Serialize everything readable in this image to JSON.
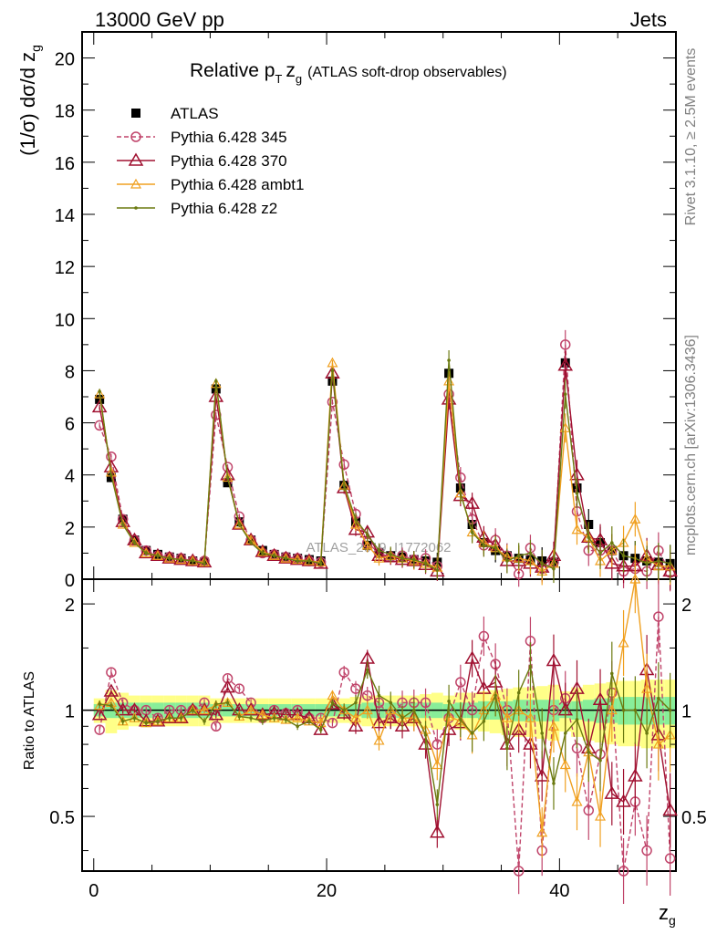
{
  "header": {
    "left": "13000 GeV pp",
    "right": "Jets"
  },
  "side_text": {
    "rivet": "Rivet 3.1.10, ≥ 2.5M events",
    "mcplots": "mcplots.cern.ch [arXiv:1306.3436]"
  },
  "watermark": "ATLAS_2019_I1772062",
  "colors": {
    "atlas": "#000000",
    "p345": "#c0446a",
    "p370": "#a01030",
    "ambt1": "#f0a020",
    "z2": "#6b7a10",
    "band_inner": "#88ee99",
    "band_outer": "#ffff88"
  },
  "chart_data": [
    {
      "type": "line",
      "title": "Relative p_T z_g (ATLAS soft-drop observables)",
      "title_main": "Relative p",
      "title_sub_T": "T",
      "title_z": "z",
      "title_sub_g": "g",
      "title_paren": "(ATLAS soft-drop observables)",
      "ylabel": "(1/σ) dσ/d z_g",
      "xlim": [
        -1,
        50
      ],
      "ylim": [
        0,
        21
      ],
      "yticks": [
        "0",
        "2",
        "4",
        "6",
        "8",
        "10",
        "12",
        "14",
        "16",
        "18",
        "20"
      ],
      "x": [
        0.5,
        1.5,
        2.5,
        3.5,
        4.5,
        5.5,
        6.5,
        7.5,
        8.5,
        9.5,
        10.5,
        11.5,
        12.5,
        13.5,
        14.5,
        15.5,
        16.5,
        17.5,
        18.5,
        19.5,
        20.5,
        21.5,
        22.5,
        23.5,
        24.5,
        25.5,
        26.5,
        27.5,
        28.5,
        29.5,
        30.5,
        31.5,
        32.5,
        33.5,
        34.5,
        35.5,
        36.5,
        37.5,
        38.5,
        39.5,
        40.5,
        41.5,
        42.5,
        43.5,
        44.5,
        45.5,
        46.5,
        47.5,
        48.5,
        49.5
      ],
      "series": [
        {
          "name": "ATLAS",
          "key": "atlas",
          "marker": "square",
          "values": [
            6.9,
            3.9,
            2.3,
            1.5,
            1.1,
            0.95,
            0.85,
            0.8,
            0.7,
            0.65,
            7.3,
            3.7,
            2.2,
            1.5,
            1.1,
            0.95,
            0.85,
            0.8,
            0.75,
            0.7,
            7.6,
            3.6,
            2.2,
            1.3,
            1.0,
            0.9,
            0.85,
            0.75,
            0.7,
            0.65,
            7.9,
            3.5,
            2.1,
            1.4,
            1.1,
            0.9,
            0.8,
            0.75,
            0.7,
            0.65,
            8.3,
            3.5,
            2.1,
            1.4,
            1.1,
            0.9,
            0.8,
            0.7,
            0.65,
            0.6
          ]
        },
        {
          "name": "Pythia 6.428 345",
          "key": "p345",
          "marker": "circle",
          "dashed": true,
          "values": [
            5.9,
            4.7,
            2.3,
            1.5,
            1.1,
            0.9,
            0.85,
            0.8,
            0.7,
            0.7,
            6.3,
            4.3,
            2.4,
            1.5,
            1.0,
            0.95,
            0.85,
            0.8,
            0.7,
            0.65,
            6.8,
            4.4,
            2.5,
            1.4,
            1.0,
            0.85,
            0.9,
            0.75,
            0.8,
            0.5,
            7.1,
            3.9,
            2.3,
            1.3,
            1.5,
            0.9,
            0.2,
            1.2,
            0.4,
            0.65,
            9.0,
            2.6,
            1.1,
            1.1,
            1.1,
            0.3,
            0.4,
            0.3,
            1.1,
            0.25
          ]
        },
        {
          "name": "Pythia 6.428 370",
          "key": "p370",
          "marker": "triangle",
          "values": [
            6.6,
            4.3,
            2.2,
            1.5,
            1.0,
            0.9,
            0.8,
            0.75,
            0.7,
            0.65,
            7.0,
            4.0,
            2.1,
            1.5,
            1.05,
            0.9,
            0.8,
            0.75,
            0.7,
            0.6,
            7.9,
            3.5,
            1.9,
            1.8,
            0.9,
            0.85,
            0.75,
            0.7,
            0.55,
            0.3,
            6.9,
            3.2,
            2.9,
            1.6,
            1.3,
            0.7,
            0.7,
            0.6,
            0.45,
            0.9,
            8.2,
            4.0,
            1.6,
            1.5,
            0.6,
            0.5,
            0.5,
            0.9,
            0.55,
            0.3
          ]
        },
        {
          "name": "Pythia 6.428 ambt1",
          "key": "ambt1",
          "marker": "triangle-small",
          "values": [
            7.1,
            4.1,
            2.1,
            1.4,
            1.0,
            0.9,
            0.8,
            0.75,
            0.7,
            0.65,
            7.5,
            3.9,
            2.1,
            1.5,
            1.05,
            0.9,
            0.8,
            0.75,
            0.7,
            0.65,
            8.3,
            3.6,
            2.1,
            1.3,
            0.8,
            0.9,
            0.8,
            0.7,
            0.6,
            0.45,
            7.6,
            3.3,
            1.8,
            1.4,
            1.2,
            0.85,
            0.8,
            0.7,
            0.3,
            0.6,
            5.8,
            1.9,
            1.6,
            0.7,
            1.1,
            1.4,
            2.3,
            0.8,
            0.5,
            0.5
          ]
        },
        {
          "name": "Pythia 6.428 z2",
          "key": "z2",
          "marker": "dot",
          "values": [
            7.2,
            4.0,
            2.1,
            1.4,
            1.0,
            0.9,
            0.8,
            0.75,
            0.7,
            0.6,
            7.6,
            3.9,
            2.1,
            1.4,
            1.0,
            0.9,
            0.8,
            0.7,
            0.7,
            0.6,
            8.0,
            3.6,
            2.3,
            1.7,
            1.1,
            0.95,
            0.8,
            0.75,
            0.6,
            0.35,
            8.4,
            3.3,
            1.8,
            1.3,
            1.2,
            0.7,
            0.9,
            1.0,
            0.6,
            0.4,
            7.1,
            3.3,
            1.6,
            1.0,
            1.4,
            0.9,
            0.8,
            0.6,
            0.7,
            0.6
          ]
        }
      ]
    },
    {
      "type": "line",
      "ylabel": "Ratio to ATLAS",
      "xlabel": "z_g",
      "xlim": [
        -1,
        50
      ],
      "ylim": [
        0.35,
        2.35
      ],
      "yticks": [
        "0.5",
        "1",
        "2"
      ],
      "xticks": [
        "0",
        "20",
        "40"
      ],
      "band_inner_halfwidth": [
        0.04,
        0.05,
        0.05,
        0.05,
        0.05,
        0.05,
        0.05,
        0.05,
        0.05,
        0.05,
        0.04,
        0.04,
        0.04,
        0.04,
        0.04,
        0.04,
        0.04,
        0.04,
        0.04,
        0.04,
        0.04,
        0.04,
        0.04,
        0.05,
        0.05,
        0.05,
        0.05,
        0.05,
        0.05,
        0.05,
        0.04,
        0.05,
        0.05,
        0.06,
        0.06,
        0.06,
        0.07,
        0.07,
        0.07,
        0.07,
        0.05,
        0.06,
        0.07,
        0.08,
        0.08,
        0.09,
        0.09,
        0.09,
        0.09,
        0.09
      ],
      "band_outer_halfwidth": [
        0.08,
        0.14,
        0.12,
        0.1,
        0.1,
        0.1,
        0.1,
        0.1,
        0.1,
        0.1,
        0.08,
        0.08,
        0.08,
        0.08,
        0.08,
        0.08,
        0.08,
        0.08,
        0.08,
        0.08,
        0.08,
        0.08,
        0.09,
        0.1,
        0.1,
        0.1,
        0.1,
        0.1,
        0.11,
        0.12,
        0.1,
        0.12,
        0.12,
        0.13,
        0.14,
        0.15,
        0.16,
        0.16,
        0.17,
        0.18,
        0.13,
        0.16,
        0.18,
        0.19,
        0.2,
        0.21,
        0.21,
        0.22,
        0.22,
        0.22
      ],
      "series": [
        {
          "key": "p345",
          "marker": "circle",
          "dashed": true,
          "values": [
            0.88,
            1.28,
            1.05,
            1.0,
            1.0,
            0.95,
            1.0,
            1.0,
            1.0,
            1.05,
            0.9,
            1.23,
            1.15,
            1.05,
            0.95,
            1.0,
            0.98,
            1.0,
            0.95,
            0.95,
            0.92,
            1.28,
            1.15,
            1.1,
            1.05,
            0.95,
            1.05,
            1.05,
            1.05,
            0.8,
            0.95,
            1.2,
            1.0,
            1.62,
            1.35,
            1.0,
            0.3,
            1.57,
            0.4,
            1.0,
            1.08,
            0.78,
            0.52,
            0.75,
            1.12,
            0.3,
            0.55,
            0.4,
            1.84,
            0.38
          ]
        },
        {
          "key": "p370",
          "marker": "triangle",
          "values": [
            0.97,
            1.13,
            1.0,
            1.0,
            0.93,
            0.93,
            0.95,
            0.95,
            1.0,
            1.0,
            0.97,
            1.16,
            1.0,
            1.0,
            0.97,
            0.98,
            0.97,
            0.97,
            0.95,
            0.88,
            1.04,
            0.98,
            0.9,
            1.4,
            0.92,
            0.95,
            0.9,
            0.95,
            0.8,
            0.45,
            0.88,
            0.92,
            1.4,
            1.15,
            1.2,
            0.8,
            0.88,
            0.8,
            0.65,
            1.38,
            1.0,
            1.15,
            0.78,
            1.07,
            0.58,
            0.55,
            0.65,
            1.3,
            0.85,
            0.52
          ]
        },
        {
          "key": "ambt1",
          "marker": "triangle-small",
          "values": [
            1.03,
            1.05,
            0.93,
            0.95,
            0.92,
            0.93,
            0.95,
            0.95,
            1.0,
            1.0,
            1.03,
            1.05,
            0.96,
            1.0,
            0.97,
            0.95,
            0.94,
            0.95,
            0.93,
            0.92,
            1.1,
            1.0,
            0.95,
            1.0,
            0.82,
            1.0,
            0.95,
            0.95,
            0.88,
            0.7,
            0.96,
            0.93,
            0.85,
            1.0,
            1.1,
            0.95,
            1.0,
            0.95,
            0.45,
            0.9,
            0.7,
            0.55,
            0.76,
            0.5,
            1.0,
            1.55,
            2.88,
            1.15,
            0.8,
            0.85
          ]
        },
        {
          "key": "z2",
          "marker": "dot",
          "values": [
            1.04,
            1.03,
            0.93,
            0.95,
            0.92,
            0.93,
            0.95,
            0.95,
            1.0,
            0.93,
            1.04,
            1.05,
            0.96,
            0.95,
            0.93,
            0.95,
            0.94,
            0.9,
            0.93,
            0.88,
            1.05,
            1.0,
            1.05,
            1.3,
            1.1,
            1.05,
            0.95,
            1.0,
            0.85,
            0.54,
            1.06,
            0.94,
            0.86,
            0.93,
            1.1,
            0.78,
            1.12,
            1.33,
            0.86,
            0.62,
            0.86,
            0.94,
            0.76,
            0.72,
            1.27,
            1.0,
            1.0,
            0.86,
            1.08,
            1.0
          ]
        }
      ]
    }
  ]
}
